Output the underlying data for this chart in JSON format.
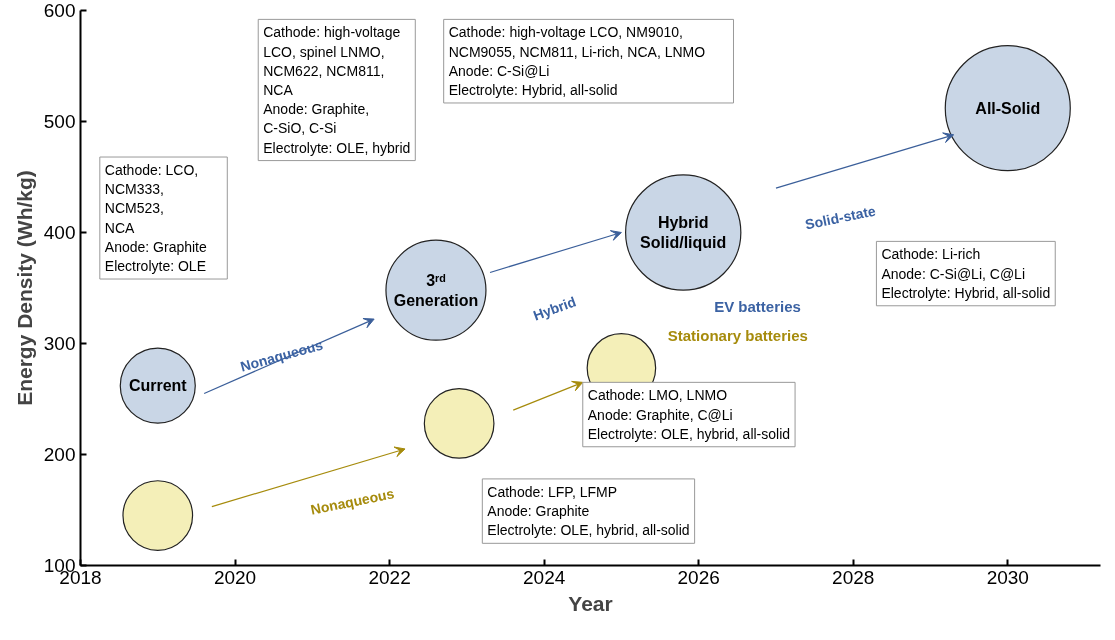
{
  "chart_data": {
    "type": "bubble",
    "relative": false,
    "xlabel": "Year",
    "ylabel": "Energy Density (Wh/kg)",
    "xlim": [
      2018,
      2031.2
    ],
    "ylim": [
      100,
      600
    ],
    "xticks": [
      2018,
      2020,
      2022,
      2024,
      2026,
      2028,
      2030
    ],
    "yticks": [
      100,
      200,
      300,
      400,
      500,
      600
    ],
    "grid": false,
    "series": [
      {
        "name": "EV batteries",
        "color": "#c9d6e6",
        "x": [
          2019,
          2022.6,
          2025.8,
          2030
        ],
        "values": [
          262,
          348,
          400,
          512
        ],
        "sizes": [
          0.36,
          0.64,
          0.85,
          1
        ]
      },
      {
        "name": "Stationary batteries",
        "color": "#f4efb8",
        "x": [
          2019,
          2022.9,
          2025
        ],
        "values": [
          145,
          228,
          278
        ],
        "sizes": [
          0.31,
          0.31,
          0.3
        ]
      }
    ],
    "annotations": [
      "Cathode:   LCO,\n               NCM333,\n               NCM523,\n               NCA\nAnode:  Graphite\nElectrolyte: OLE",
      "Cathode: high-voltage\n     LCO, spinel LNMO,\n     NCM622, NCM811,\n     NCA\nAnode: Graphite,\n     C-SiO, C-Si\nElectrolyte: OLE, hybrid",
      "Cathode:   high-voltage LCO, NM9010,\n     NCM9055, NCM811, Li-rich,  NCA, LNMO\nAnode:    C-Si@Li\nElectrolyte: Hybrid, all-solid",
      "Cathode: Li-rich\nAnode:    C-Si@Li, C@Li\nElectrolyte: Hybrid, all-solid",
      "Cathode: LMO, LNMO\nAnode: Graphite, C@Li\nElectrolyte: OLE, hybrid, all-solid",
      "Cathode: LFP, LFMP\nAnode: Graphite\nElectrolyte: OLE, hybrid, all-solid",
      "Nonaqueous",
      "Hybrid",
      "Solid-state",
      "Nonaqueous",
      {
        "text": "Current",
        "x": 2019,
        "y": 262
      },
      {
        "text": "3ʳᵈ\nGeneration",
        "x": 2022.6,
        "y": 348
      },
      {
        "text": "Hybrid\nSolid/liquid",
        "x": 2025.8,
        "y": 400
      },
      {
        "text": "All-Solid",
        "x": 2030,
        "y": 512
      }
    ]
  }
}
